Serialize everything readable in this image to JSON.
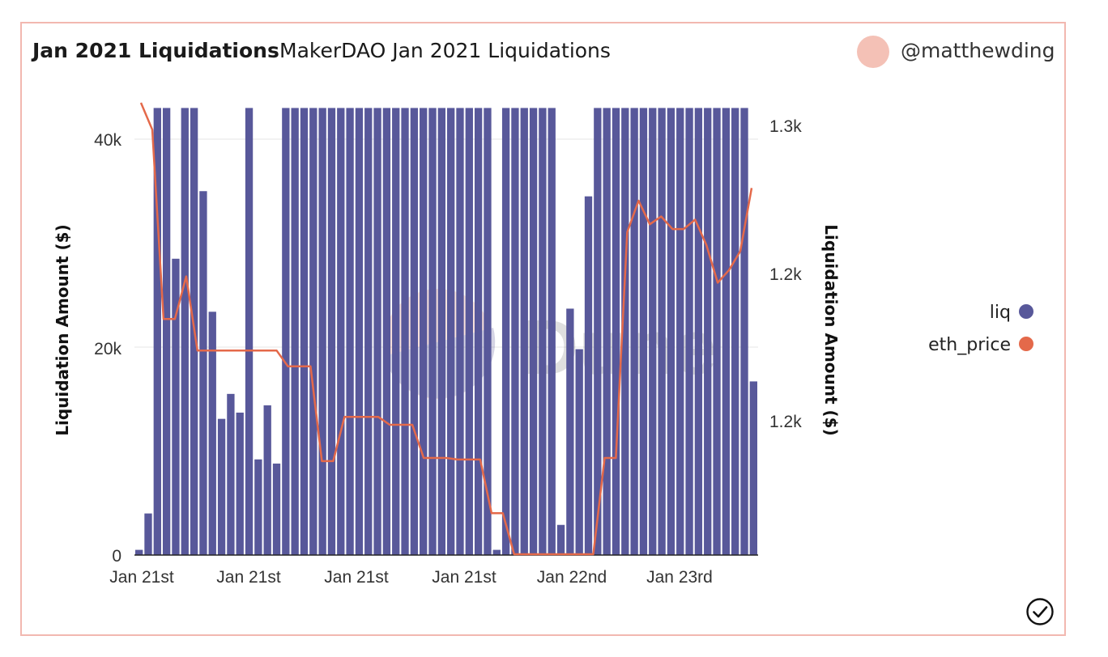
{
  "header": {
    "query_name": "Jan 2021 Liquidations",
    "chart_title": "MakerDAO Jan 2021 Liquidations",
    "author": "@matthewding"
  },
  "watermark": "Dune",
  "colors": {
    "liq": "#58589a",
    "eth_price": "#e4694a",
    "card_border": "#f2b8b0",
    "avatar": "#f4c1b6"
  },
  "chart_data": {
    "type": "bar",
    "title": "MakerDAO Jan 2021 Liquidations",
    "x_tick_labels": [
      "Jan 21st",
      "Jan 21st",
      "Jan 21st",
      "Jan 21st",
      "Jan 22nd",
      "Jan 23rd"
    ],
    "y_left": {
      "label": "Liquidation Amount ($)",
      "ticks": [
        "0",
        "20k",
        "40k"
      ],
      "range": [
        0,
        43000
      ]
    },
    "y_right": {
      "label": "Liquidation Amount ($)",
      "ticks": [
        "1.2k",
        "1.2k",
        "1.3k"
      ]
    },
    "legend": [
      "liq",
      "eth_price"
    ],
    "grid": true,
    "series": [
      {
        "name": "liq",
        "type": "bar",
        "axis": "left",
        "values": [
          500,
          4000,
          43000,
          43000,
          28500,
          43000,
          43000,
          35000,
          23400,
          13100,
          15500,
          13700,
          43000,
          9200,
          14400,
          8800,
          43000,
          43000,
          43000,
          43000,
          43000,
          43000,
          43000,
          43000,
          43000,
          43000,
          43000,
          43000,
          43000,
          43000,
          43000,
          43000,
          43000,
          43000,
          43000,
          43000,
          43000,
          43000,
          43000,
          500,
          43000,
          43000,
          43000,
          43000,
          43000,
          43000,
          2900,
          23700,
          19800,
          34500,
          43000,
          43000,
          43000,
          43000,
          43000,
          43000,
          43000,
          43000,
          43000,
          43000,
          43000,
          43000,
          43000,
          43000,
          43000,
          43000,
          43000,
          16700
        ]
      },
      {
        "name": "eth_price",
        "type": "line",
        "axis": "right",
        "values": [
          1322,
          1305,
          1185,
          1185,
          1212,
          1165,
          1165,
          1165,
          1165,
          1165,
          1165,
          1165,
          1165,
          1155,
          1155,
          1155,
          1095,
          1095,
          1123,
          1123,
          1123,
          1123,
          1118,
          1118,
          1118,
          1097,
          1097,
          1097,
          1096,
          1096,
          1096,
          1062,
          1062,
          1036,
          1036,
          1036,
          1036,
          1036,
          1036,
          1036,
          1036,
          1097,
          1097,
          1240,
          1260,
          1245,
          1250,
          1242,
          1242,
          1248,
          1232,
          1208,
          1216,
          1228,
          1268
        ]
      }
    ]
  }
}
